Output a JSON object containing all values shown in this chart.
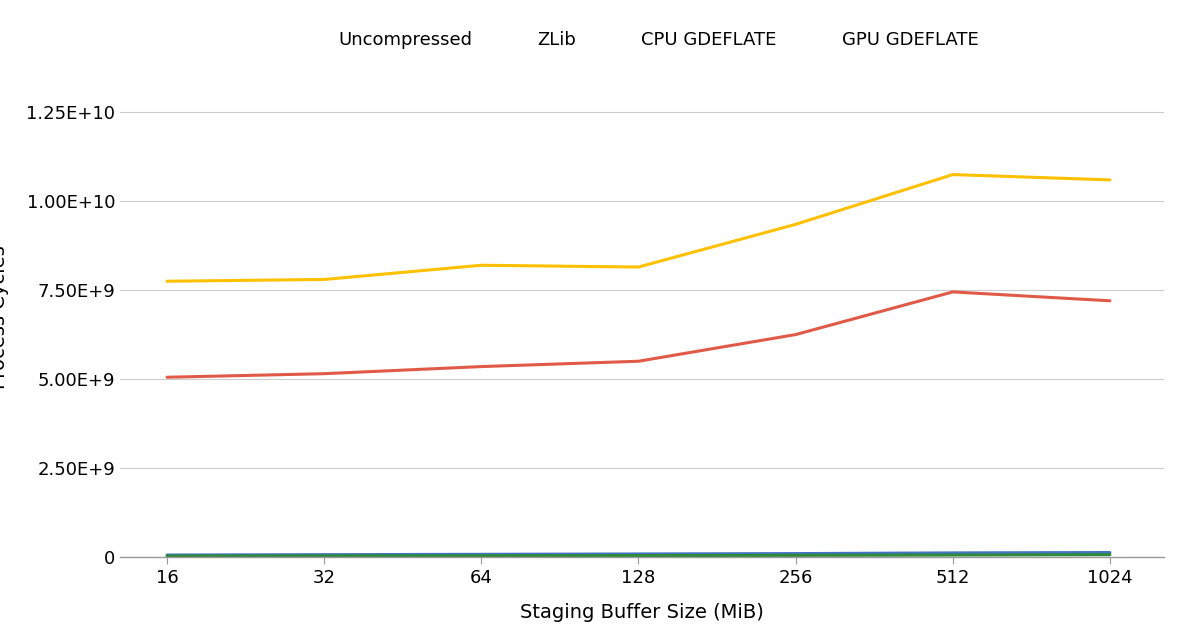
{
  "x_values": [
    16,
    32,
    64,
    128,
    256,
    512,
    1024
  ],
  "x_labels": [
    "16",
    "32",
    "64",
    "128",
    "256",
    "512",
    "1024"
  ],
  "series": {
    "Uncompressed": {
      "values": [
        50000000.0,
        60000000.0,
        70000000.0,
        80000000.0,
        90000000.0,
        110000000.0,
        120000000.0
      ],
      "color": "#4472C4",
      "linewidth": 2.2
    },
    "ZLib": {
      "values": [
        5050000000.0,
        5150000000.0,
        5350000000.0,
        5500000000.0,
        6250000000.0,
        7450000000.0,
        7200000000.0
      ],
      "color": "#E05A47",
      "linewidth": 2.2
    },
    "CPU GDEFLATE": {
      "values": [
        7750000000.0,
        7800000000.0,
        8200000000.0,
        8150000000.0,
        9350000000.0,
        10750000000.0,
        10600000000.0
      ],
      "color": "#FFC000",
      "linewidth": 2.2
    },
    "GPU GDEFLATE": {
      "values": [
        20000000.0,
        25000000.0,
        30000000.0,
        35000000.0,
        40000000.0,
        50000000.0,
        60000000.0
      ],
      "color": "#2E8B3A",
      "linewidth": 2.2
    }
  },
  "xlabel": "Staging Buffer Size (MiB)",
  "ylim": [
    0,
    13500000000.0
  ],
  "yticks": [
    0,
    2500000000.0,
    5000000000.0,
    7500000000.0,
    10000000000.0,
    12500000000.0
  ],
  "ytick_labels": [
    "0",
    "2.50E+9",
    "5.00E+9",
    "7.50E+9",
    "1.00E+10",
    "1.25E+10"
  ],
  "background_color": "#ffffff",
  "grid_color": "#cccccc",
  "label_fontsize": 14,
  "tick_fontsize": 13,
  "legend_fontsize": 13
}
